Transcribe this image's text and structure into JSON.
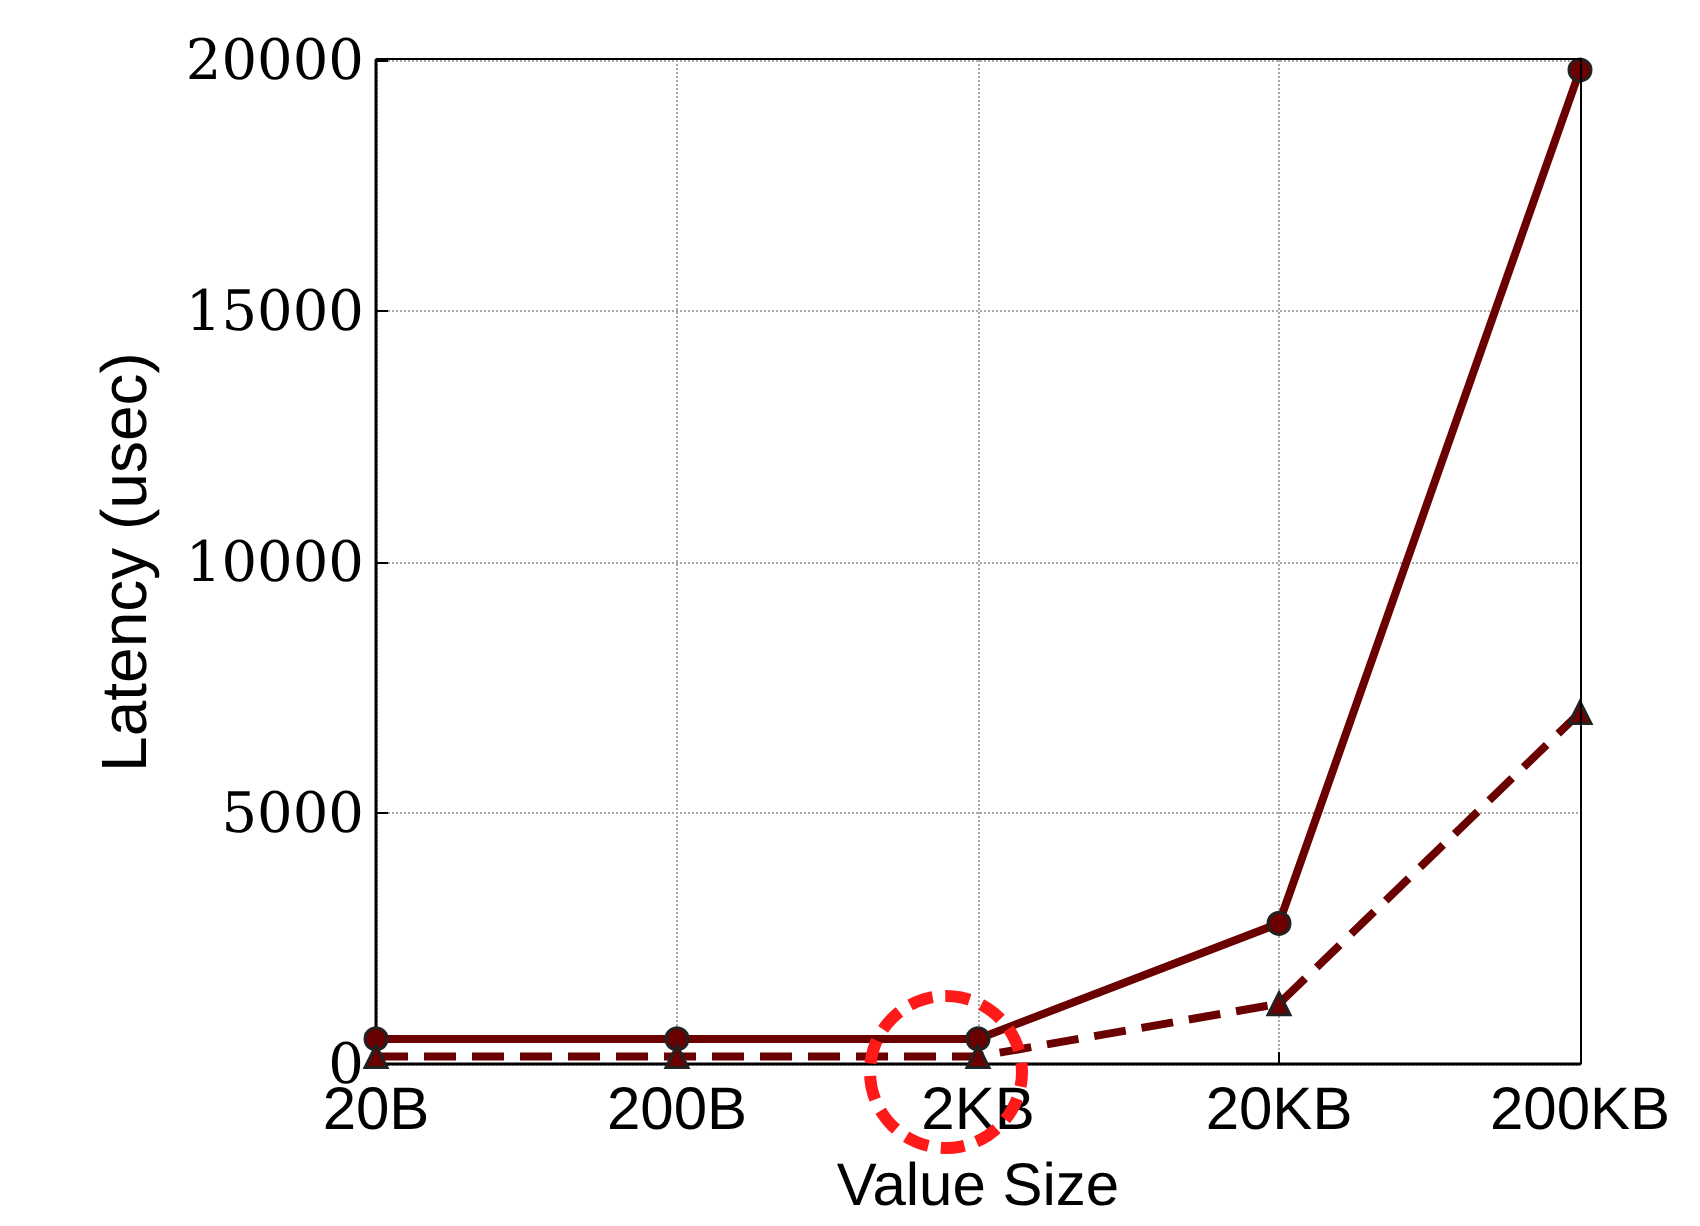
{
  "chart_data": {
    "type": "line",
    "xlabel": "Value Size",
    "ylabel": "Latency (usec)",
    "categories": [
      "20B",
      "200B",
      "2KB",
      "20KB",
      "200KB"
    ],
    "series": [
      {
        "color": "#6b0000",
        "values": [
          500,
          500,
          500,
          2800,
          19800
        ],
        "marker": "circle",
        "line_style": "solid"
      },
      {
        "color": "#6b0000",
        "values": [
          150,
          150,
          150,
          1200,
          7000
        ],
        "marker": "triangle",
        "line_style": "dashed"
      }
    ],
    "ylim": [
      0,
      20000
    ],
    "yticks": [
      0,
      5000,
      10000,
      15000,
      20000
    ],
    "grid": true
  }
}
